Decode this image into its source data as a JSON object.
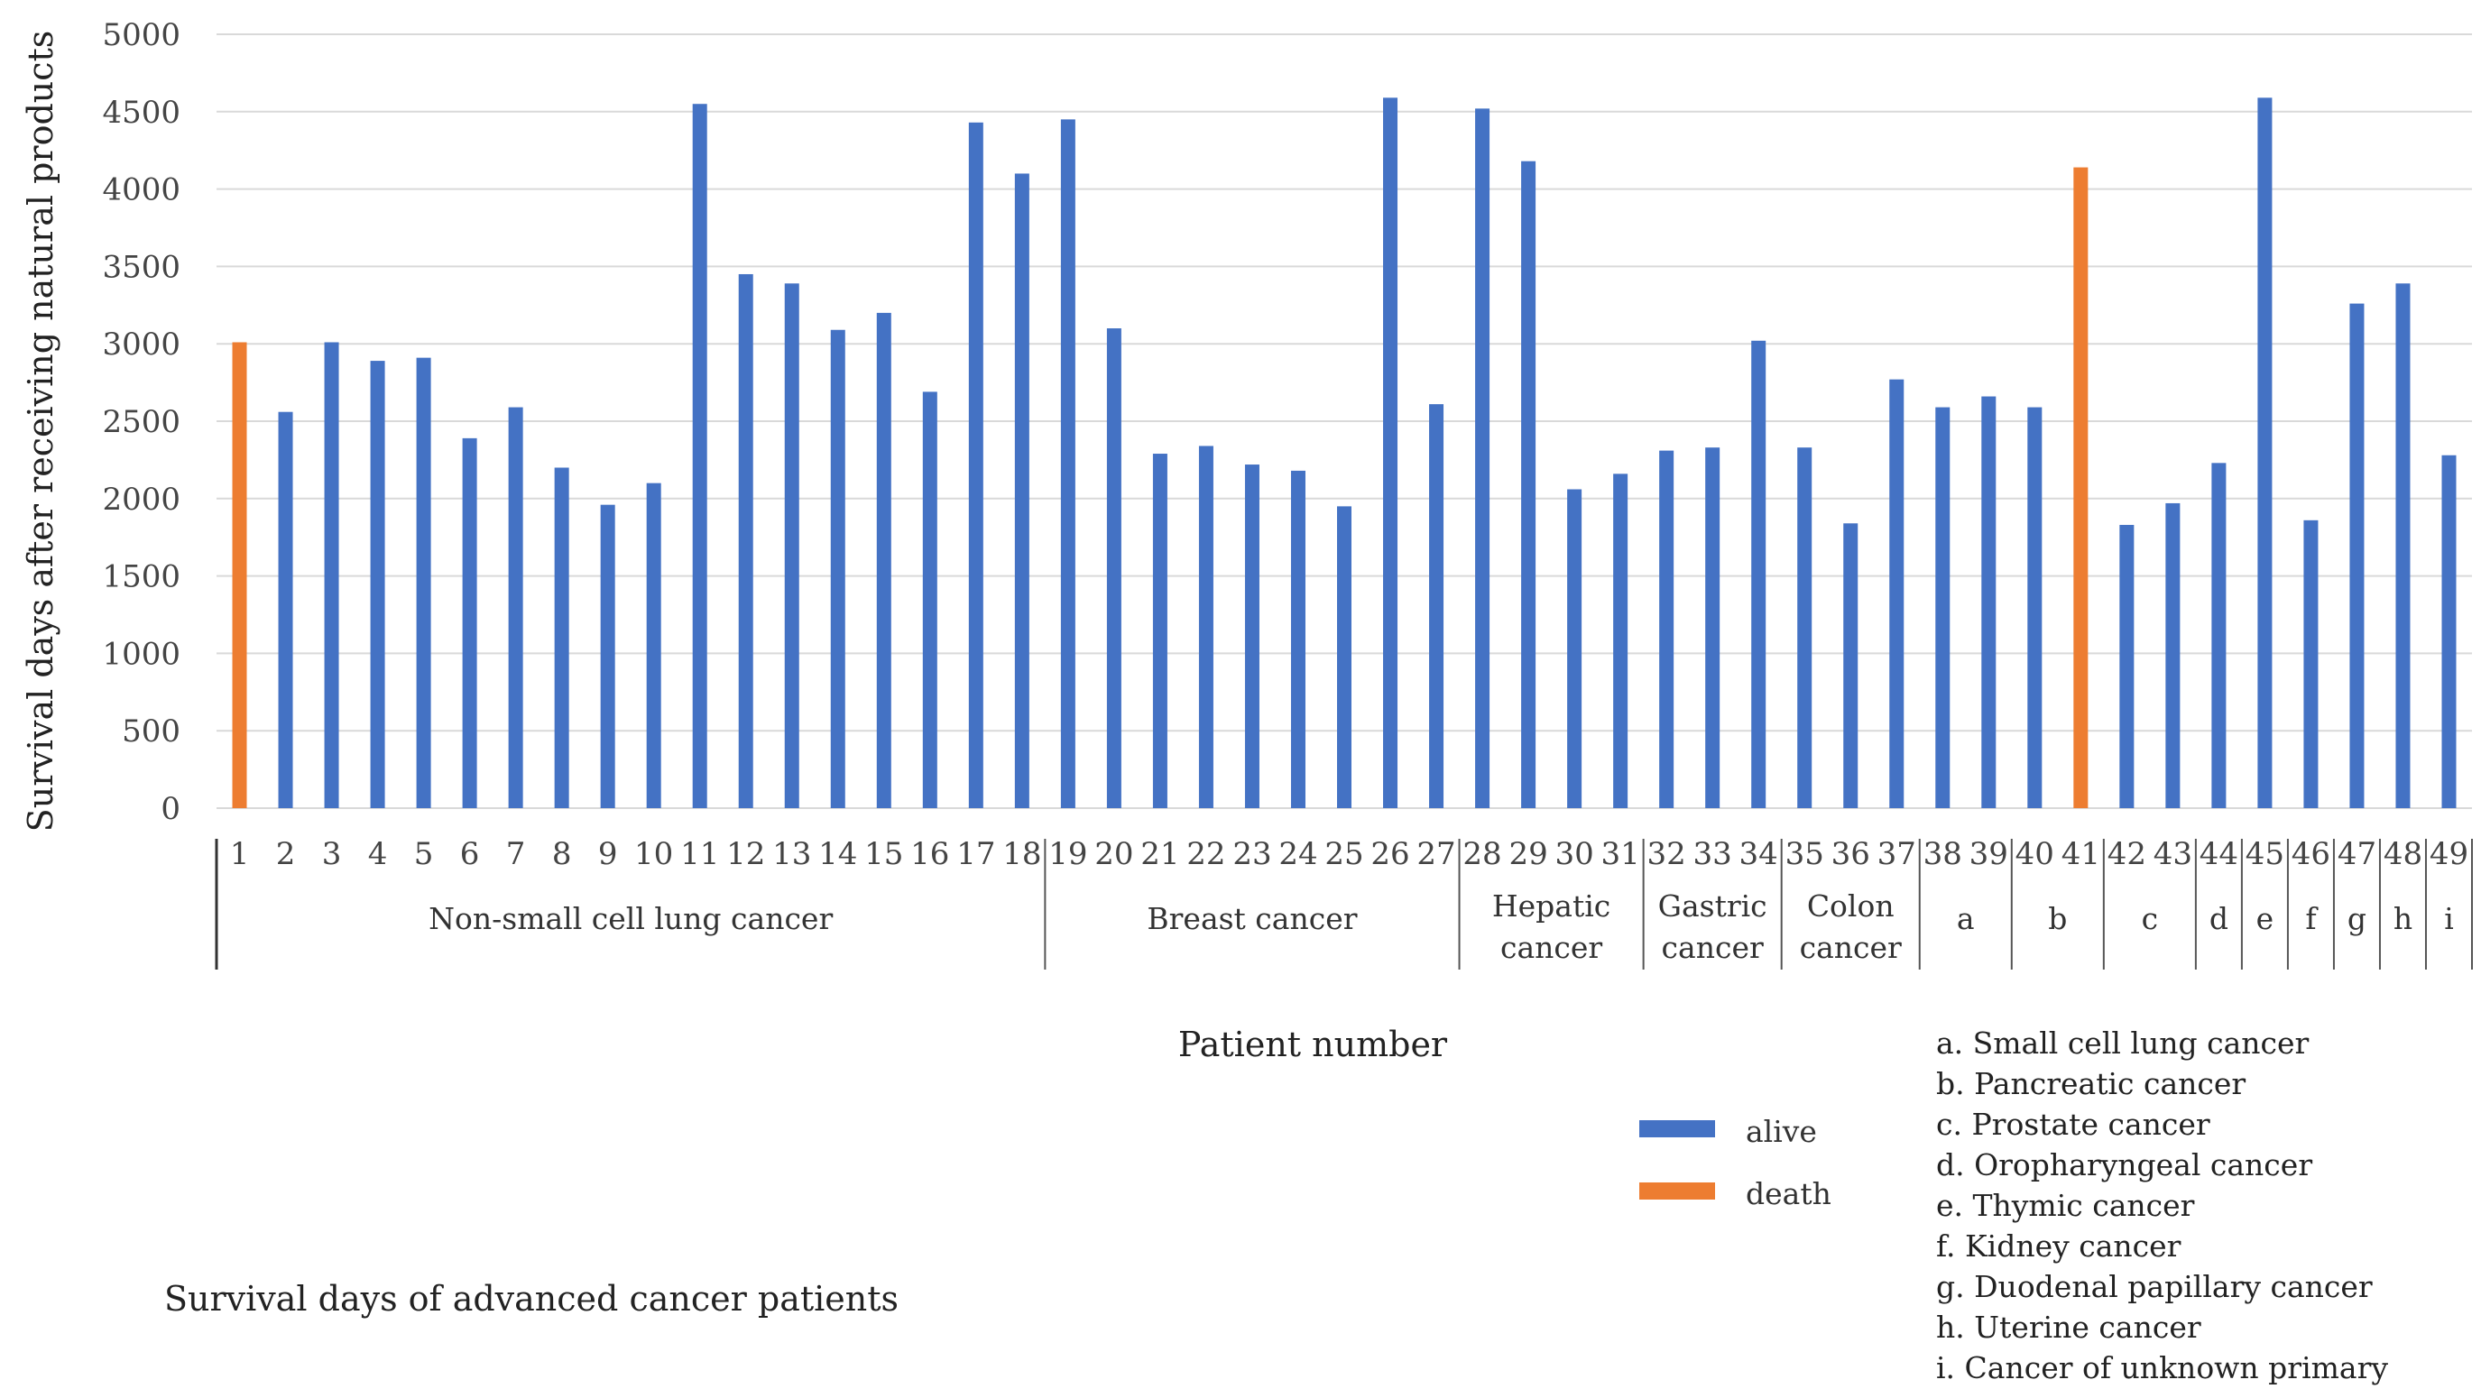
{
  "chart_data": {
    "type": "bar",
    "title": "Survival days of advanced cancer patients",
    "xlabel": "Patient number",
    "ylabel": "Survival days after receiving natural products",
    "ylim": [
      0,
      5000
    ],
    "yticks": [
      0,
      500,
      1000,
      1500,
      2000,
      2500,
      3000,
      3500,
      4000,
      4500,
      5000
    ],
    "grid": true,
    "categories": [
      "1",
      "2",
      "3",
      "4",
      "5",
      "6",
      "7",
      "8",
      "9",
      "10",
      "11",
      "12",
      "13",
      "14",
      "15",
      "16",
      "17",
      "18",
      "19",
      "20",
      "21",
      "22",
      "23",
      "24",
      "25",
      "26",
      "27",
      "28",
      "29",
      "30",
      "31",
      "32",
      "33",
      "34",
      "35",
      "36",
      "37",
      "38",
      "39",
      "40",
      "41",
      "42",
      "43",
      "44",
      "45",
      "46",
      "47",
      "48",
      "49"
    ],
    "values": [
      3010,
      2560,
      3010,
      2890,
      2910,
      2390,
      2590,
      2200,
      1960,
      2100,
      4550,
      3450,
      3390,
      3090,
      3200,
      2690,
      4430,
      4100,
      4450,
      3100,
      2290,
      2340,
      2220,
      2180,
      1950,
      4590,
      2610,
      4520,
      4180,
      2060,
      2160,
      2310,
      2330,
      3020,
      2330,
      1840,
      2770,
      2590,
      2660,
      2590,
      4140,
      1830,
      1970,
      2230,
      4590,
      1860,
      3260,
      3390,
      2280
    ],
    "status": [
      "death",
      "alive",
      "alive",
      "alive",
      "alive",
      "alive",
      "alive",
      "alive",
      "alive",
      "alive",
      "alive",
      "alive",
      "alive",
      "alive",
      "alive",
      "alive",
      "alive",
      "alive",
      "alive",
      "alive",
      "alive",
      "alive",
      "alive",
      "alive",
      "alive",
      "alive",
      "alive",
      "alive",
      "alive",
      "alive",
      "alive",
      "alive",
      "alive",
      "alive",
      "alive",
      "alive",
      "alive",
      "alive",
      "alive",
      "alive",
      "death",
      "alive",
      "alive",
      "alive",
      "alive",
      "alive",
      "alive",
      "alive",
      "alive"
    ],
    "series": [
      {
        "name": "alive",
        "color": "#4472C4"
      },
      {
        "name": "death",
        "color": "#ED7D31"
      }
    ],
    "groups": [
      {
        "lines": [
          "Non-small cell lung cancer"
        ],
        "start": 1,
        "end": 18
      },
      {
        "lines": [
          "Breast cancer"
        ],
        "start": 19,
        "end": 27
      },
      {
        "lines": [
          "Hepatic",
          "cancer"
        ],
        "start": 28,
        "end": 31
      },
      {
        "lines": [
          "Gastric",
          "cancer"
        ],
        "start": 32,
        "end": 34
      },
      {
        "lines": [
          "Colon",
          "cancer"
        ],
        "start": 35,
        "end": 37
      },
      {
        "lines": [
          "a"
        ],
        "start": 38,
        "end": 39
      },
      {
        "lines": [
          "b"
        ],
        "start": 40,
        "end": 41
      },
      {
        "lines": [
          "c"
        ],
        "start": 42,
        "end": 43
      },
      {
        "lines": [
          "d"
        ],
        "start": 44,
        "end": 44
      },
      {
        "lines": [
          "e"
        ],
        "start": 45,
        "end": 45
      },
      {
        "lines": [
          "f"
        ],
        "start": 46,
        "end": 46
      },
      {
        "lines": [
          "g"
        ],
        "start": 47,
        "end": 47
      },
      {
        "lines": [
          "h"
        ],
        "start": 48,
        "end": 48
      },
      {
        "lines": [
          "i"
        ],
        "start": 49,
        "end": 49
      }
    ],
    "notes": [
      "a. Small cell lung cancer",
      "b. Pancreatic cancer",
      "c. Prostate cancer",
      "d. Oropharyngeal cancer",
      "e. Thymic cancer",
      "f. Kidney cancer",
      "g. Duodenal papillary cancer",
      "h. Uterine cancer",
      "i. Cancer of unknown primary"
    ]
  }
}
